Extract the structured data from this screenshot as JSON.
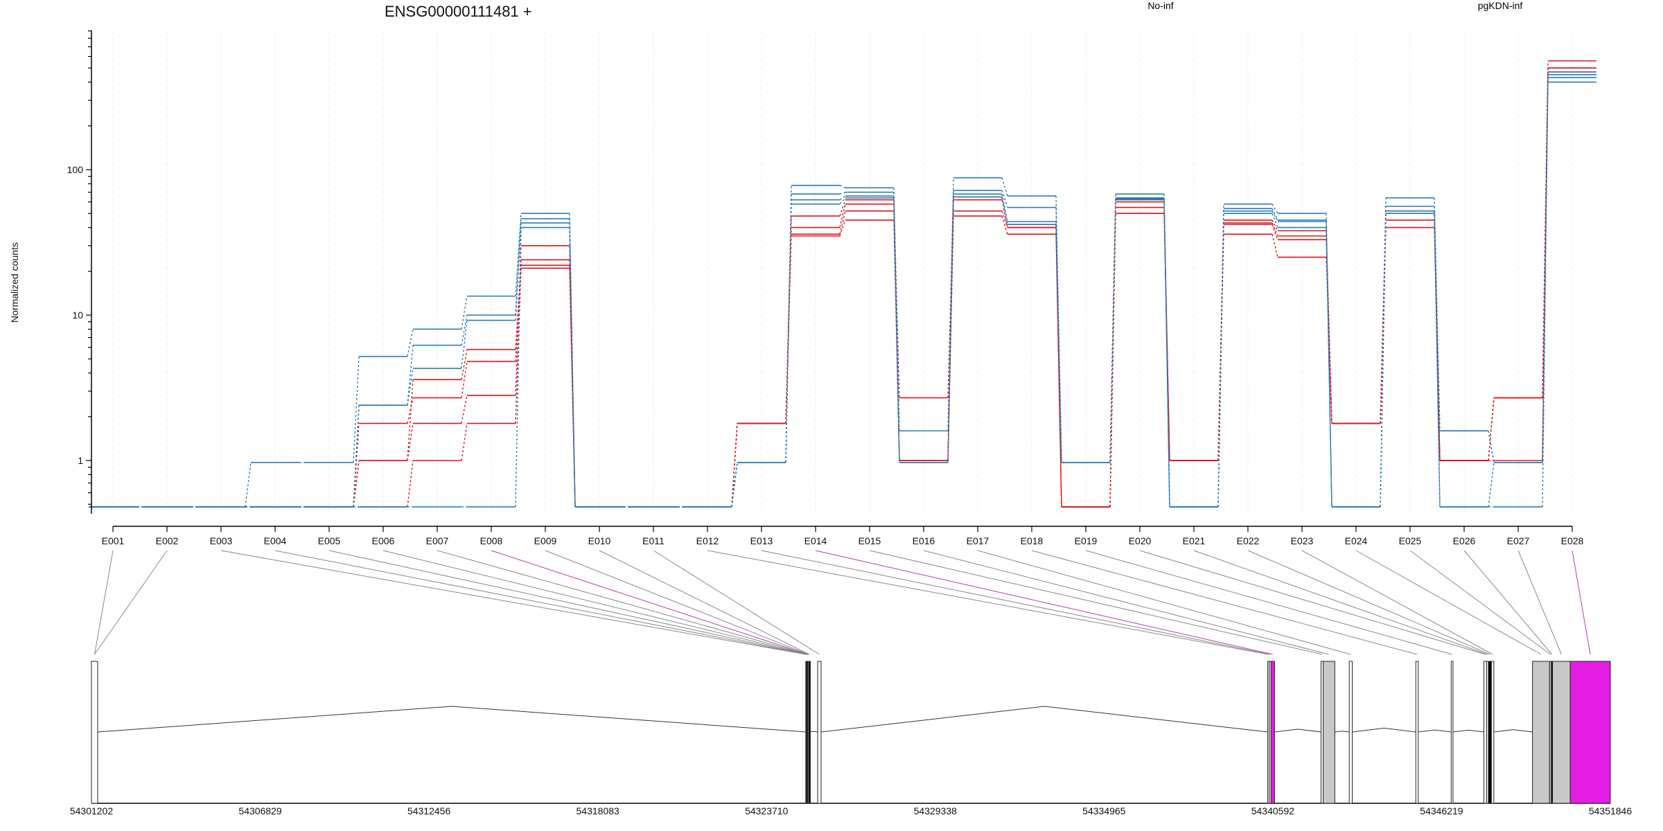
{
  "chart_data": {
    "type": "line",
    "title": "ENSG00000111481 +",
    "ylabel": "Normalized counts",
    "y_scale": "log",
    "ylim": [
      0.47,
      900
    ],
    "y_ticks": [
      {
        "value": 1,
        "label": "1"
      },
      {
        "value": 10,
        "label": "10"
      },
      {
        "value": 100,
        "label": "100"
      }
    ],
    "floor_value": 0.48,
    "categories": [
      "E001",
      "E002",
      "E003",
      "E004",
      "E005",
      "E006",
      "E007",
      "E008",
      "E009",
      "E010",
      "E011",
      "E012",
      "E013",
      "E014",
      "E015",
      "E016",
      "E017",
      "E018",
      "E019",
      "E020",
      "E021",
      "E022",
      "E023",
      "E024",
      "E025",
      "E026",
      "E027",
      "E028"
    ],
    "legend": [
      {
        "name": "No-inf",
        "color": "#d7191c"
      },
      {
        "name": "pgKDN-inf",
        "color": "#2c7bb6"
      }
    ],
    "series": [
      {
        "group": "No-inf",
        "color": "#d7191c",
        "values": [
          0.48,
          0.48,
          0.48,
          0.48,
          0.48,
          1.0,
          1.8,
          2.8,
          30,
          0.48,
          0.48,
          0.48,
          1.8,
          48,
          62,
          2.7,
          65,
          42,
          0.48,
          60,
          1.0,
          45,
          38,
          1.8,
          52,
          1.0,
          2.7,
          560
        ]
      },
      {
        "group": "No-inf",
        "color": "#d7191c",
        "values": [
          0.48,
          0.48,
          0.48,
          0.48,
          0.48,
          1.8,
          2.7,
          4.8,
          24,
          0.48,
          0.48,
          0.48,
          1.8,
          40,
          58,
          1.0,
          52,
          40,
          0.48,
          55,
          1.0,
          43,
          35,
          1.8,
          45,
          1.0,
          2.7,
          500
        ]
      },
      {
        "group": "No-inf",
        "color": "#d7191c",
        "values": [
          0.48,
          0.48,
          0.48,
          0.48,
          0.48,
          1.0,
          3.6,
          5.8,
          22,
          0.48,
          0.48,
          0.48,
          1.8,
          36,
          52,
          1.0,
          48,
          36,
          0.48,
          50,
          1.0,
          36,
          25,
          1.8,
          40,
          1.0,
          2.7,
          470
        ]
      },
      {
        "group": "No-inf",
        "color": "#d7191c",
        "values": [
          0.48,
          0.48,
          0.48,
          0.48,
          0.48,
          0.48,
          1.0,
          1.8,
          21,
          0.48,
          0.48,
          0.48,
          1.8,
          35,
          45,
          1.0,
          62,
          40,
          0.48,
          50,
          1.0,
          42,
          33,
          1.8,
          50,
          1.0,
          1.0,
          500
        ]
      },
      {
        "group": "pgKDN-inf",
        "color": "#2c7bb6",
        "values": [
          0.48,
          0.48,
          0.48,
          0.97,
          0.97,
          5.2,
          8.0,
          13.5,
          50,
          0.48,
          0.48,
          0.48,
          0.97,
          78,
          75,
          1.6,
          88,
          66,
          0.97,
          68,
          0.48,
          58,
          50,
          0.48,
          64,
          1.6,
          0.97,
          450
        ]
      },
      {
        "group": "pgKDN-inf",
        "color": "#2c7bb6",
        "values": [
          0.48,
          0.48,
          0.48,
          0.48,
          0.48,
          2.4,
          6.2,
          10,
          46,
          0.48,
          0.48,
          0.48,
          0.97,
          68,
          70,
          0.97,
          72,
          55,
          0.97,
          64,
          0.48,
          54,
          45,
          0.48,
          56,
          1.6,
          0.97,
          470
        ]
      },
      {
        "group": "pgKDN-inf",
        "color": "#2c7bb6",
        "values": [
          0.48,
          0.48,
          0.48,
          0.48,
          0.48,
          2.4,
          4.3,
          9.2,
          43,
          0.48,
          0.48,
          0.48,
          0.97,
          62,
          66,
          0.97,
          68,
          44,
          0.97,
          63,
          0.48,
          52,
          44,
          0.48,
          52,
          0.48,
          0.97,
          430
        ]
      },
      {
        "group": "pgKDN-inf",
        "color": "#2c7bb6",
        "values": [
          0.48,
          0.48,
          0.48,
          0.48,
          0.48,
          0.48,
          0.48,
          0.48,
          40,
          0.48,
          0.48,
          0.48,
          0.97,
          58,
          64,
          0.97,
          65,
          42,
          0.97,
          62,
          0.48,
          50,
          40,
          0.48,
          50,
          0.48,
          0.48,
          400
        ]
      }
    ],
    "genomic_coordinates": [
      "54301202",
      "54306829",
      "54312456",
      "54318083",
      "54323710",
      "54329338",
      "54334965",
      "54340592",
      "54346219",
      "54351846"
    ],
    "genome_range": [
      54301202,
      54351846
    ],
    "exons": [
      {
        "id": "E001",
        "start": 54301202,
        "end": 54301410,
        "fill": "#ffffff"
      },
      {
        "id": "E002",
        "start": 54301202,
        "end": 54301410,
        "fill": "#ffffff"
      },
      {
        "id": "E003",
        "start": 54325020,
        "end": 54325030,
        "fill": "#000000"
      },
      {
        "id": "E004",
        "start": 54325030,
        "end": 54325045,
        "fill": "#000000"
      },
      {
        "id": "E005",
        "start": 54325045,
        "end": 54325060,
        "fill": "#000000"
      },
      {
        "id": "E006",
        "start": 54325060,
        "end": 54325070,
        "fill": "#000000"
      },
      {
        "id": "E007",
        "start": 54325070,
        "end": 54325085,
        "fill": "#000000"
      },
      {
        "id": "E008",
        "start": 54325085,
        "end": 54325095,
        "fill": "#e41ce4"
      },
      {
        "id": "E009",
        "start": 54325095,
        "end": 54325125,
        "fill": "#ffffff"
      },
      {
        "id": "E010",
        "start": 54325125,
        "end": 54325140,
        "fill": "#000000"
      },
      {
        "id": "E011",
        "start": 54325415,
        "end": 54325530,
        "fill": "#ffffff"
      },
      {
        "id": "E012",
        "start": 54340420,
        "end": 54340470,
        "fill": "#ffffff"
      },
      {
        "id": "E013",
        "start": 54340470,
        "end": 54340530,
        "fill": "#ffffff"
      },
      {
        "id": "E014",
        "start": 54340530,
        "end": 54340650,
        "fill": "#e41ce4"
      },
      {
        "id": "E015",
        "start": 54342200,
        "end": 54342270,
        "fill": "#ffffff"
      },
      {
        "id": "E016",
        "start": 54342270,
        "end": 54342660,
        "fill": "#c8c8c8"
      },
      {
        "id": "E017",
        "start": 54343140,
        "end": 54343240,
        "fill": "#ffffff"
      },
      {
        "id": "E018",
        "start": 54345360,
        "end": 54345440,
        "fill": "#ffffff"
      },
      {
        "id": "E019",
        "start": 54346540,
        "end": 54346600,
        "fill": "#ffffff"
      },
      {
        "id": "E020",
        "start": 54347630,
        "end": 54347720,
        "fill": "#ffffff"
      },
      {
        "id": "E021",
        "start": 54347720,
        "end": 54347780,
        "fill": "#ffffff"
      },
      {
        "id": "E022",
        "start": 54347780,
        "end": 54347880,
        "fill": "#000000"
      },
      {
        "id": "E023",
        "start": 54347880,
        "end": 54347960,
        "fill": "#ffffff"
      },
      {
        "id": "E024",
        "start": 54349250,
        "end": 54349820,
        "fill": "#c8c8c8"
      },
      {
        "id": "E025",
        "start": 54349820,
        "end": 54349880,
        "fill": "#c8c8c8"
      },
      {
        "id": "E026",
        "start": 54349880,
        "end": 54349920,
        "fill": "#000000"
      },
      {
        "id": "E027",
        "start": 54349920,
        "end": 54350510,
        "fill": "#c8c8c8"
      },
      {
        "id": "E028",
        "start": 54350510,
        "end": 54351846,
        "fill": "#e41ce4"
      }
    ],
    "highlighted_exons": [
      "E008",
      "E014",
      "E028"
    ],
    "grid": "vertical-light"
  }
}
